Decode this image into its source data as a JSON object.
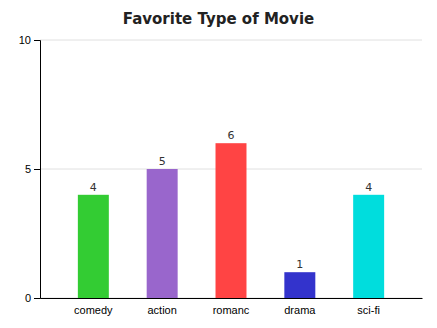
{
  "chart_data": {
    "type": "bar",
    "title": "Favorite Type of Movie",
    "categories": [
      "comedy",
      "action",
      "romanc",
      "drama",
      "sci-fi"
    ],
    "values": [
      4,
      5,
      6,
      1,
      4
    ],
    "colors": [
      "#33cc33",
      "#9966cc",
      "#ff4444",
      "#3333cc",
      "#00dddd"
    ],
    "ylim": [
      0,
      10
    ],
    "yticks": [
      0,
      5,
      10
    ],
    "grid": true,
    "data_labels": true
  }
}
